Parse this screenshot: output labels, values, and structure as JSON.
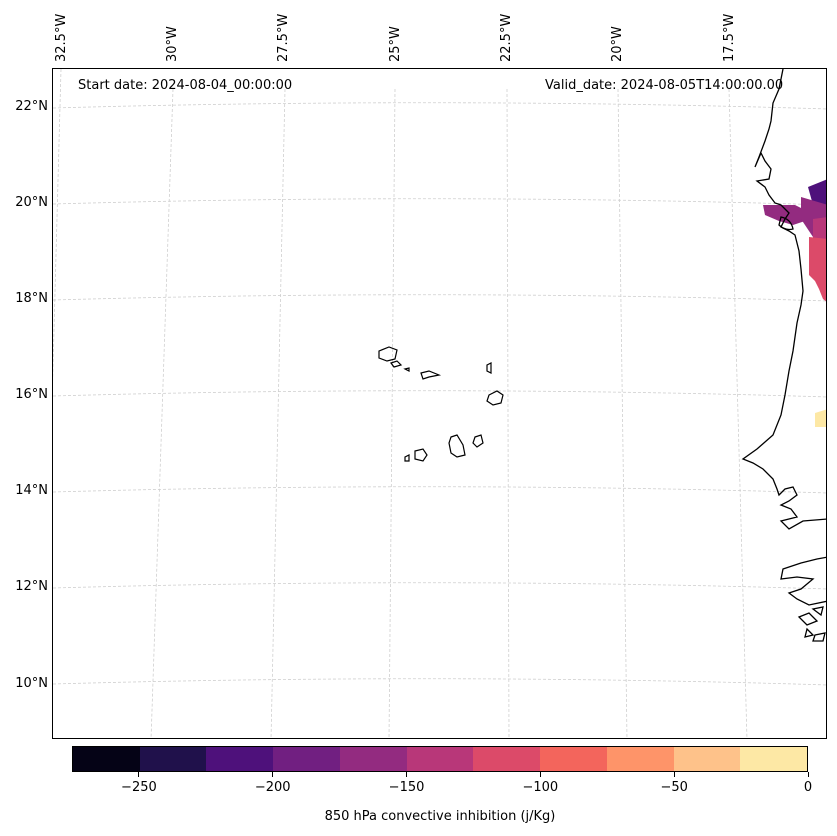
{
  "map": {
    "start_date": "Start date: 2024-08-04_00:00:00",
    "valid_date": "Valid_date: 2024-08-05T14:00:00.00",
    "lon_labels": [
      "32.5°W",
      "30°W",
      "27.5°W",
      "25°W",
      "22.5°W",
      "20°W",
      "17.5°W"
    ],
    "lat_labels": [
      "22°N",
      "20°N",
      "18°N",
      "16°N",
      "14°N",
      "12°N",
      "10°N"
    ],
    "coastline_color": "#000000",
    "gridline_color": "#cccccc"
  },
  "colorbar": {
    "label": "850 hPa convective inhibition (j/Kg)",
    "tick_labels": [
      "−250",
      "−200",
      "−150",
      "−100",
      "−50",
      "0"
    ],
    "levels": [
      -275,
      -250,
      -225,
      -200,
      -175,
      -150,
      -125,
      -100,
      -75,
      -50,
      -25,
      0
    ],
    "colors": [
      "#050316",
      "#20114b",
      "#4e117b",
      "#711f81",
      "#932b80",
      "#b83779",
      "#dc4a69",
      "#f3655c",
      "#fe9469",
      "#fec28a",
      "#fde8a5"
    ]
  }
}
